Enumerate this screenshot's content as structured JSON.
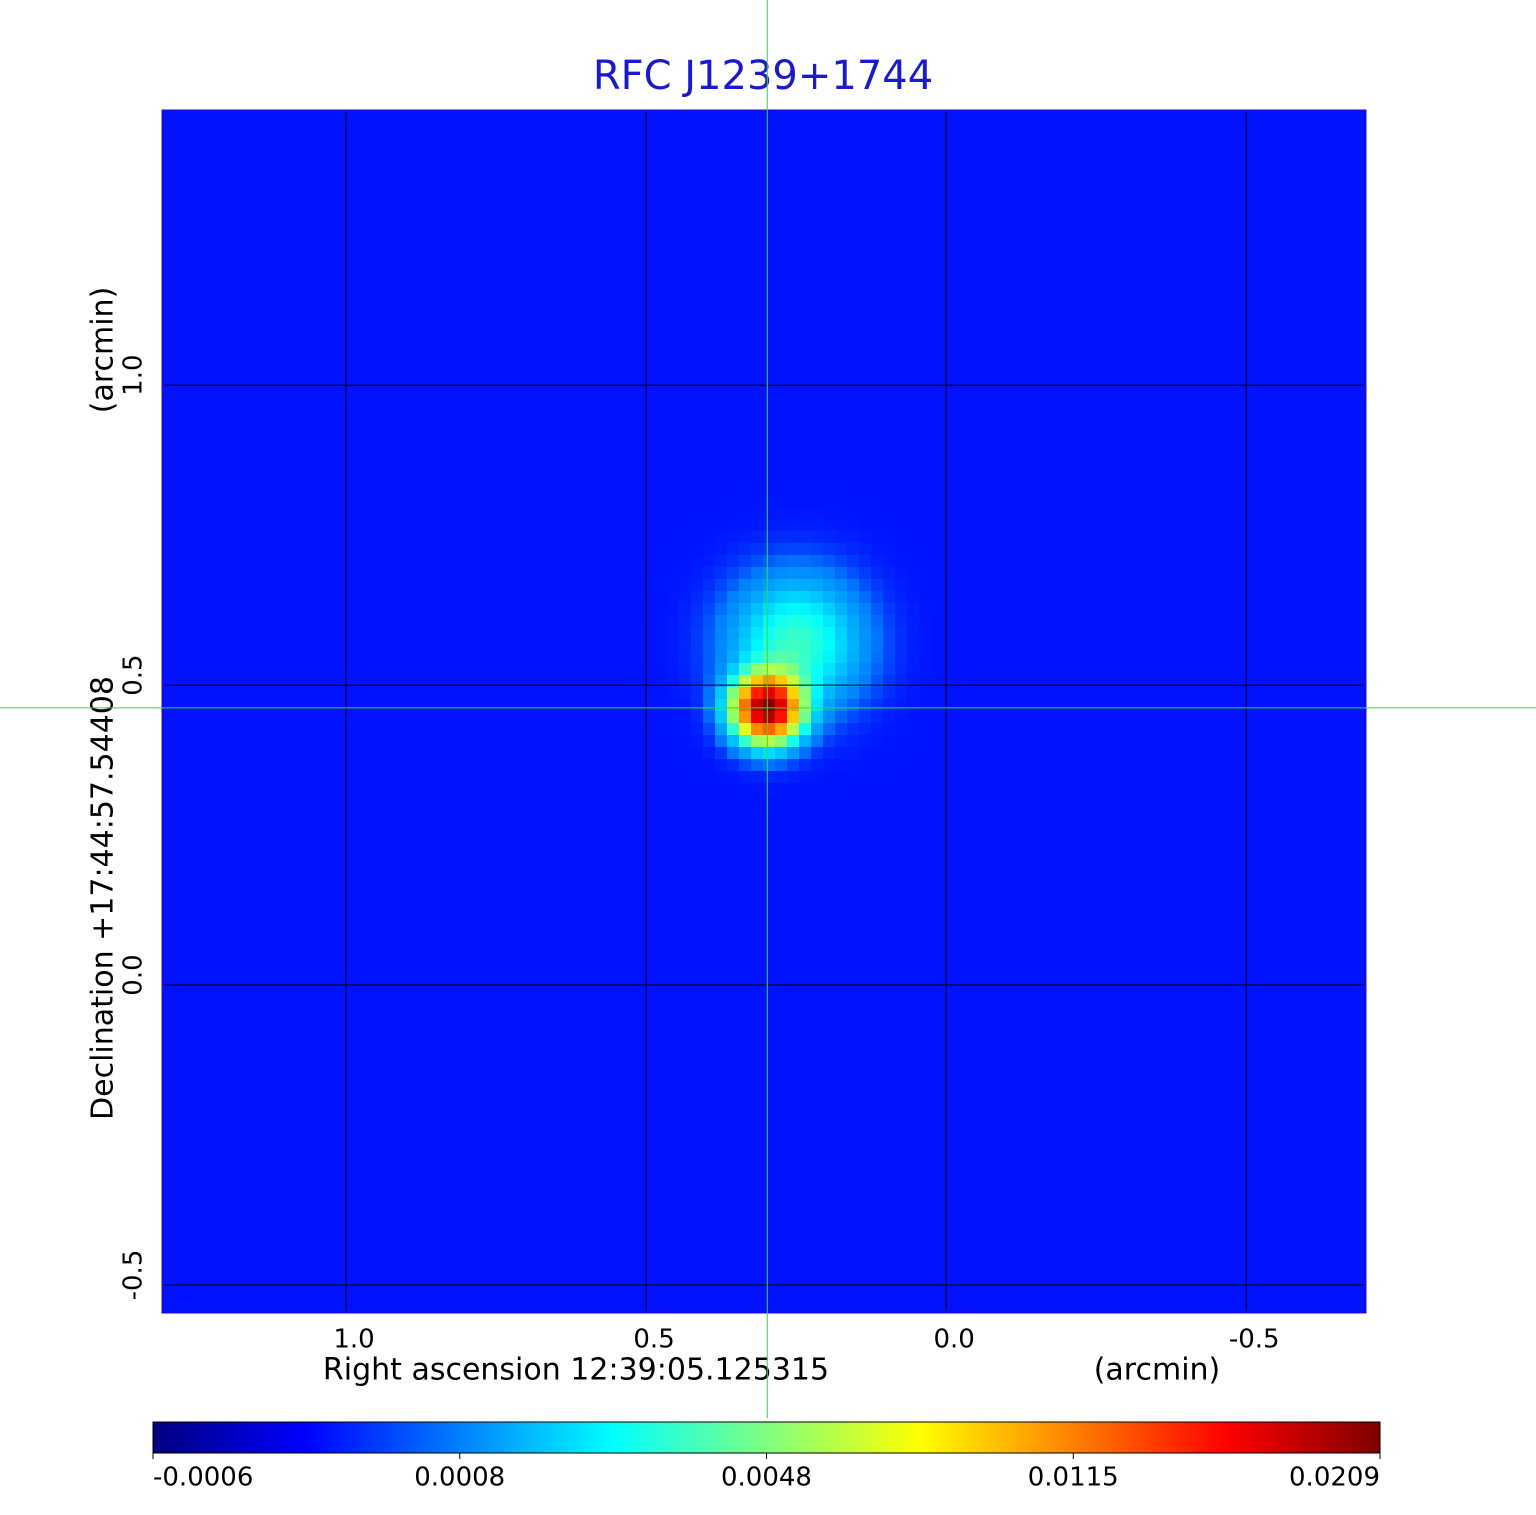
{
  "chart_data": {
    "type": "image",
    "title": "RFC J1239+1744",
    "xlabel": "Right ascension  12:39:05.125315",
    "xunit": "(arcmin)",
    "ylabel": "Declination  +17:44:57.54408",
    "yunit": "(arcmin)",
    "xlim": [
      1.305,
      -0.698
    ],
    "ylim": [
      -0.545,
      1.457
    ],
    "xticks": [
      {
        "value": 1.0,
        "label": "1.0"
      },
      0.5,
      {
        "value": 0.0,
        "label": "0.0"
      },
      -0.5
    ],
    "yticks": [
      -0.5,
      {
        "value": 0.0,
        "label": "0.0"
      },
      0.5,
      {
        "value": 1.0,
        "label": "1.0"
      }
    ],
    "grid": true,
    "colormap": "jet",
    "background": 0.0002,
    "sources": [
      {
        "x": 0.298,
        "y": 0.462,
        "peak": 0.02,
        "sigma": 0.035
      },
      {
        "x": 0.25,
        "y": 0.57,
        "peak": 0.0035,
        "sigma": 0.07
      }
    ],
    "crosshair": {
      "x": 0.298,
      "y": 0.462,
      "color": "#33dd33"
    },
    "colorbar": {
      "ticks": [
        -0.0006,
        0.0008,
        0.0048,
        0.0115,
        0.0209
      ]
    },
    "title_color": "#1a1acc",
    "frame_color": "#1010e0"
  }
}
